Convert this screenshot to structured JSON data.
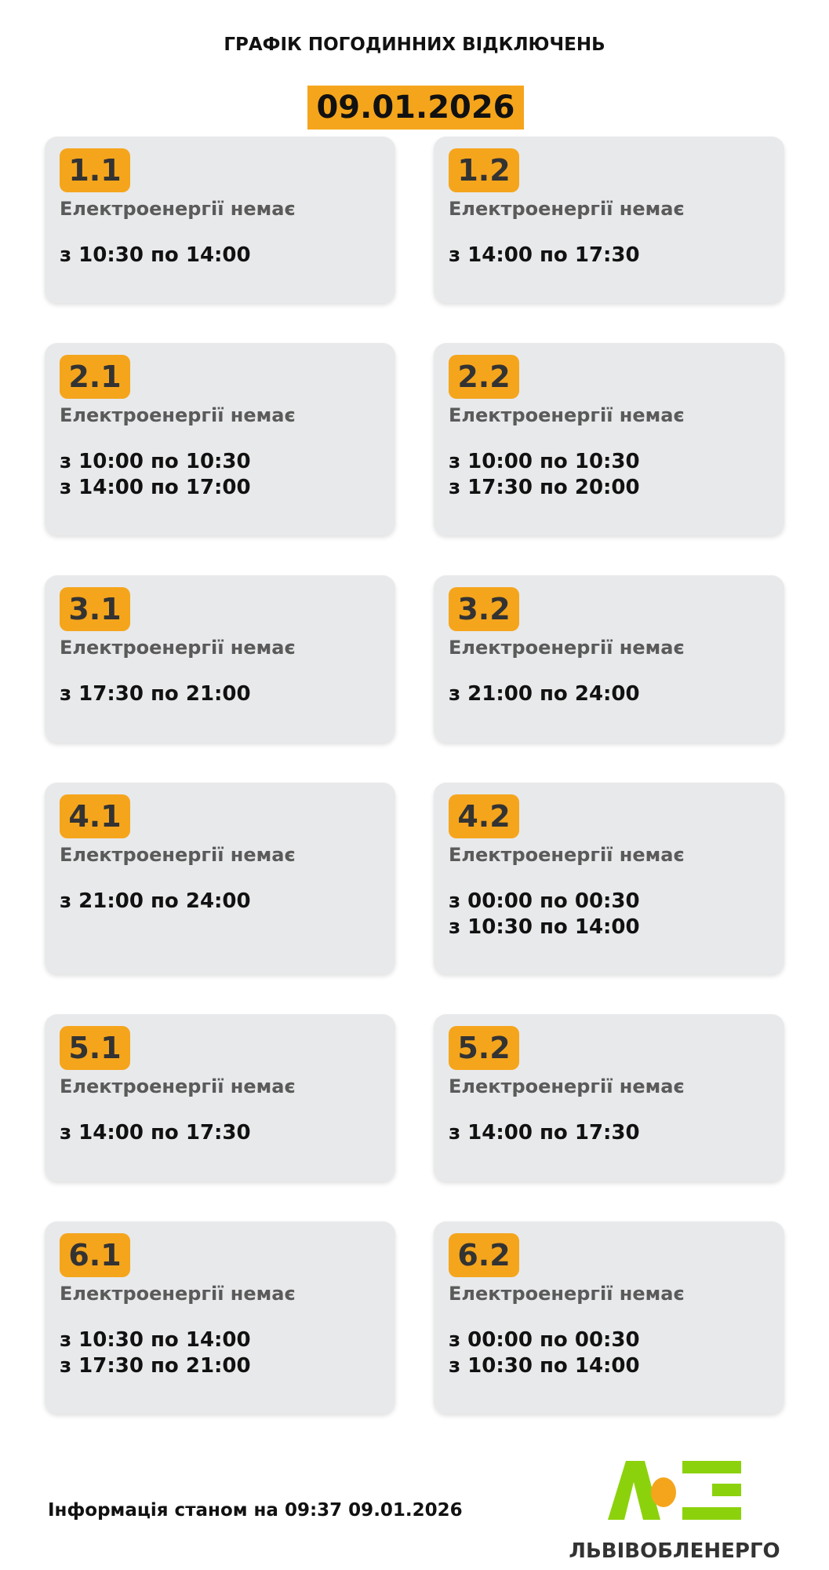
{
  "header": {
    "title": "ГРАФІК ПОГОДИННИХ ВІДКЛЮЧЕНЬ",
    "date": "09.01.2026"
  },
  "colors": {
    "accent": "#f5a51c",
    "card": "#e8e9eb",
    "logo_green": "#8cd20c",
    "logo_orange": "#f5a51c"
  },
  "groups": [
    {
      "id": "1.1",
      "status": "Електроенергії немає",
      "times": [
        "з 10:30 по 14:00"
      ]
    },
    {
      "id": "1.2",
      "status": "Електроенергії немає",
      "times": [
        "з 14:00 по 17:30"
      ]
    },
    {
      "id": "2.1",
      "status": "Електроенергії немає",
      "times": [
        "з 10:00 по 10:30",
        "з 14:00 по 17:00"
      ]
    },
    {
      "id": "2.2",
      "status": "Електроенергії немає",
      "times": [
        "з 10:00 по 10:30",
        "з 17:30 по 20:00"
      ]
    },
    {
      "id": "3.1",
      "status": "Електроенергії немає",
      "times": [
        "з 17:30 по 21:00"
      ]
    },
    {
      "id": "3.2",
      "status": "Електроенергії немає",
      "times": [
        "з 21:00 по 24:00"
      ]
    },
    {
      "id": "4.1",
      "status": "Електроенергії немає",
      "times": [
        "з 21:00 по 24:00"
      ]
    },
    {
      "id": "4.2",
      "status": "Електроенергії немає",
      "times": [
        "з 00:00 по 00:30",
        "з 10:30 по 14:00"
      ]
    },
    {
      "id": "5.1",
      "status": "Електроенергії немає",
      "times": [
        "з 14:00 по 17:30"
      ]
    },
    {
      "id": "5.2",
      "status": "Електроенергії немає",
      "times": [
        "з 14:00 по 17:30"
      ]
    },
    {
      "id": "6.1",
      "status": "Електроенергії немає",
      "times": [
        "з 10:30 по 14:00",
        "з 17:30 по 21:00"
      ]
    },
    {
      "id": "6.2",
      "status": "Електроенергії немає",
      "times": [
        "з 00:00 по 00:30",
        "з 10:30 по 14:00"
      ]
    }
  ],
  "footer": {
    "info": "Інформація станом на 09:37 09.01.2026",
    "logo_text": "ЛЬВІВОБЛЕНЕРГО"
  }
}
